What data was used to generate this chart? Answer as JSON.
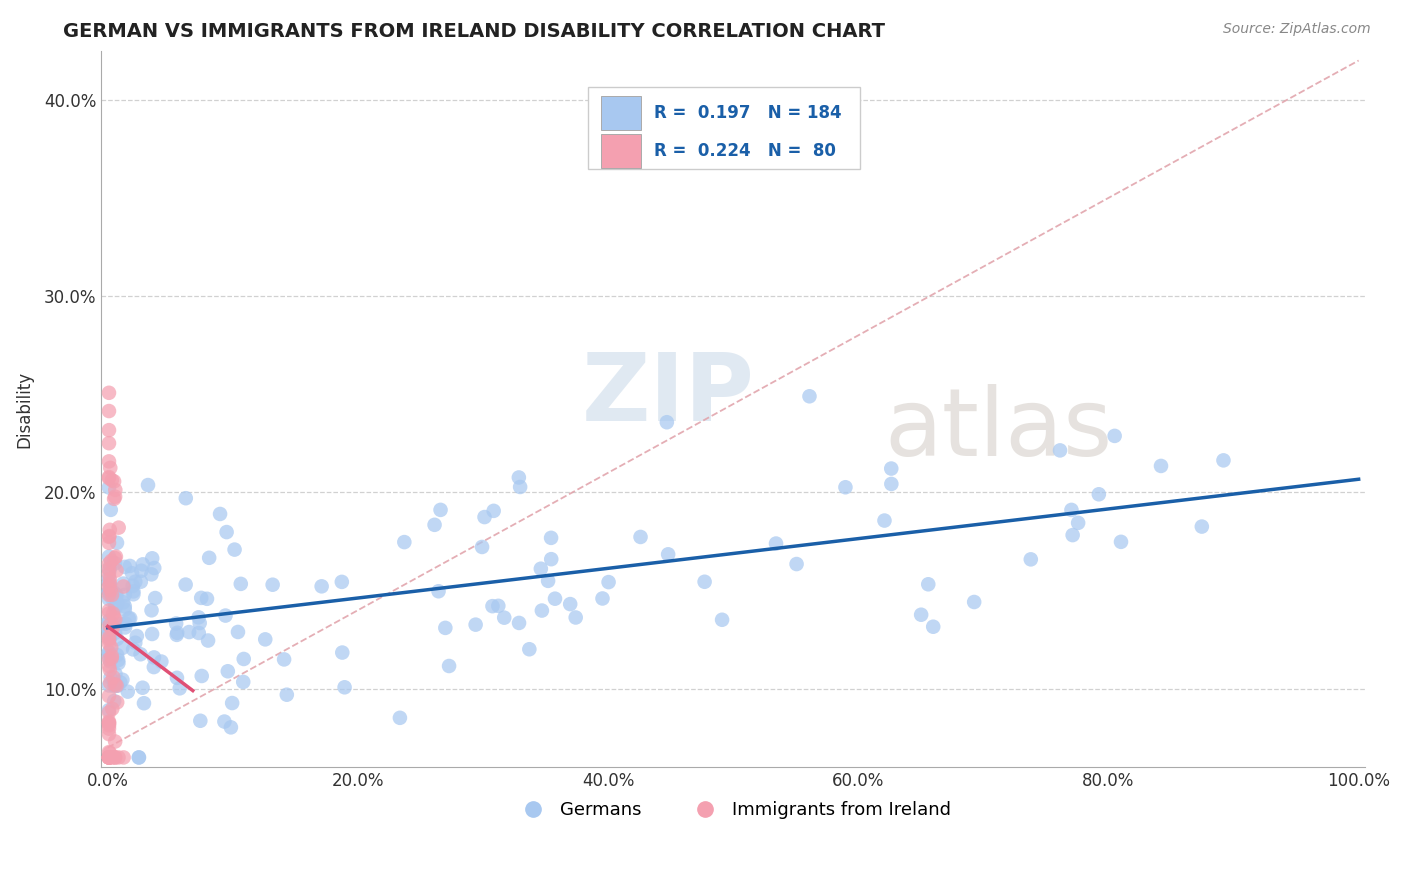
{
  "title": "GERMAN VS IMMIGRANTS FROM IRELAND DISABILITY CORRELATION CHART",
  "source": "Source: ZipAtlas.com",
  "ylabel": "Disability",
  "xlim": [
    -0.005,
    1.005
  ],
  "ylim": [
    0.06,
    0.425
  ],
  "yticks": [
    0.1,
    0.2,
    0.3,
    0.4
  ],
  "ytick_labels": [
    "10.0%",
    "20.0%",
    "30.0%",
    "40.0%"
  ],
  "xticks": [
    0.0,
    0.2,
    0.4,
    0.6,
    0.8,
    1.0
  ],
  "xtick_labels": [
    "0.0%",
    "20.0%",
    "40.0%",
    "60.0%",
    "80.0%",
    "100.0%"
  ],
  "german_color": "#a8c8f0",
  "irish_color": "#f4a0b0",
  "blue_line_color": "#1a5fa8",
  "pink_line_color": "#e05075",
  "diag_line_color": "#e0a0a8",
  "german_R": 0.197,
  "german_N": 184,
  "irish_R": 0.224,
  "irish_N": 80,
  "legend_color": "#1a5fa8",
  "watermark_zip": "ZIP",
  "watermark_atlas": "atlas",
  "watermark_zip_color": "#c8d8e8",
  "watermark_atlas_color": "#c8c0b8",
  "bottom_legend_german": "Germans",
  "bottom_legend_irish": "Immigrants from Ireland"
}
